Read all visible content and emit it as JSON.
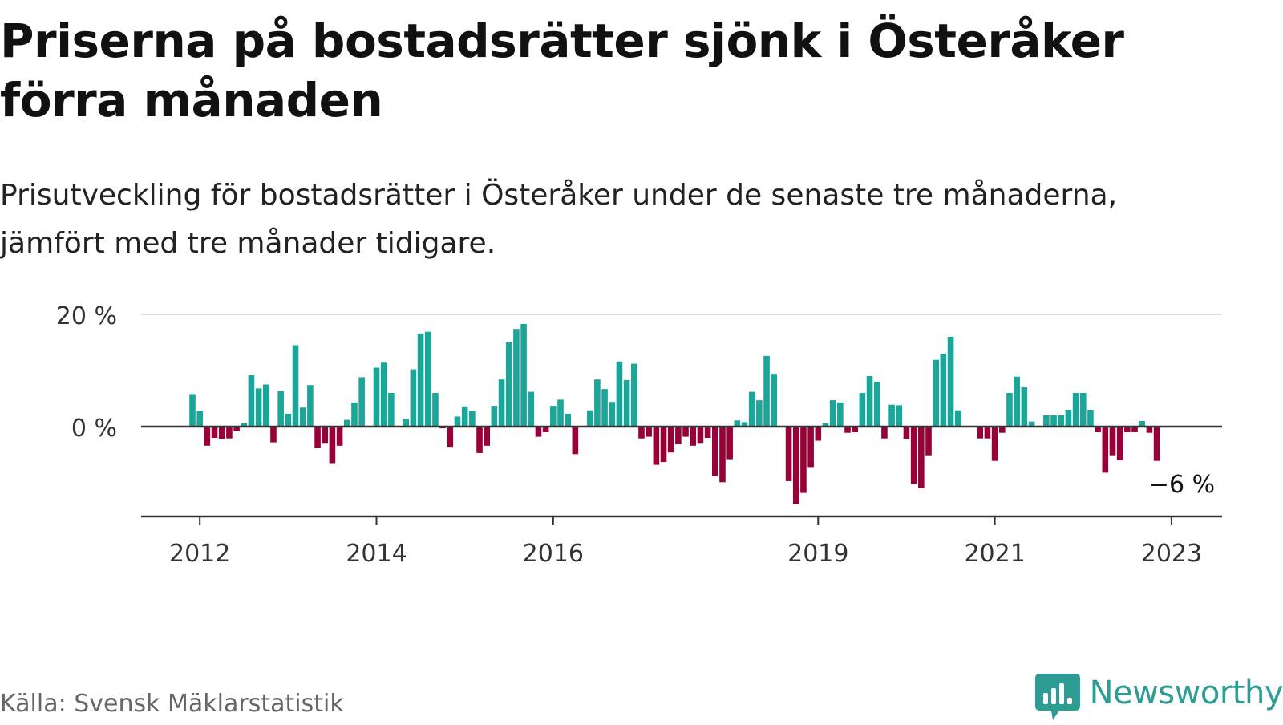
{
  "header": {
    "title": "Priserna på bostadsrätter sjönk i Österåker förra månaden",
    "subtitle": "Prisutveckling för bostadsrätter i Österåker under de senaste tre månaderna, jämfört med tre månader tidigare."
  },
  "footer": {
    "source": "Källa: Svensk Mäklarstatistik",
    "brand": "Newsworthy",
    "brand_icon": "bar-chart-speech-bubble-icon"
  },
  "colors": {
    "positive": "#1aa699",
    "negative": "#990038",
    "grid": "#dddddd",
    "axis": "#333333",
    "brand": "#2d9c93"
  },
  "chart_data": {
    "type": "bar",
    "title": "",
    "xlabel": "",
    "ylabel": "",
    "x_start": "2011-12",
    "x_end": "2023-03",
    "x_ticks": [
      "2012",
      "2014",
      "2016",
      "2019",
      "2021",
      "2023"
    ],
    "y_ticks": [
      {
        "value": 0,
        "label": "0 %"
      },
      {
        "value": 20,
        "label": "20 %"
      }
    ],
    "ylim": [
      -16,
      20
    ],
    "grid": true,
    "legend": "none",
    "annotation": {
      "label": "−6 %",
      "month": "2023-02",
      "value": -6
    },
    "series": [
      {
        "values": [
          {
            "month": "2011-12",
            "value": 5.8
          },
          {
            "month": "2012-01",
            "value": 2.8
          },
          {
            "month": "2012-02",
            "value": -3.4
          },
          {
            "month": "2012-03",
            "value": -2.0
          },
          {
            "month": "2012-04",
            "value": -2.2
          },
          {
            "month": "2012-05",
            "value": -2.1
          },
          {
            "month": "2012-06",
            "value": -0.8
          },
          {
            "month": "2012-07",
            "value": 0.6
          },
          {
            "month": "2012-08",
            "value": 9.2
          },
          {
            "month": "2012-09",
            "value": 6.8
          },
          {
            "month": "2012-10",
            "value": 7.5
          },
          {
            "month": "2012-11",
            "value": -2.8
          },
          {
            "month": "2012-12",
            "value": 6.3
          },
          {
            "month": "2013-01",
            "value": 2.3
          },
          {
            "month": "2013-02",
            "value": 14.5
          },
          {
            "month": "2013-03",
            "value": 3.4
          },
          {
            "month": "2013-04",
            "value": 7.4
          },
          {
            "month": "2013-05",
            "value": -3.8
          },
          {
            "month": "2013-06",
            "value": -2.9
          },
          {
            "month": "2013-07",
            "value": -6.5
          },
          {
            "month": "2013-08",
            "value": -3.4
          },
          {
            "month": "2013-09",
            "value": 1.2
          },
          {
            "month": "2013-10",
            "value": 4.3
          },
          {
            "month": "2013-11",
            "value": 8.8
          },
          {
            "month": "2014-01",
            "value": 10.5
          },
          {
            "month": "2014-02",
            "value": 11.4
          },
          {
            "month": "2014-03",
            "value": 6.0
          },
          {
            "month": "2014-05",
            "value": 1.4
          },
          {
            "month": "2014-06",
            "value": 10.2
          },
          {
            "month": "2014-07",
            "value": 16.6
          },
          {
            "month": "2014-08",
            "value": 16.9
          },
          {
            "month": "2014-09",
            "value": 6.0
          },
          {
            "month": "2014-10",
            "value": -0.3
          },
          {
            "month": "2014-11",
            "value": -3.6
          },
          {
            "month": "2014-12",
            "value": 1.8
          },
          {
            "month": "2015-01",
            "value": 3.6
          },
          {
            "month": "2015-02",
            "value": 2.8
          },
          {
            "month": "2015-03",
            "value": -4.7
          },
          {
            "month": "2015-04",
            "value": -3.4
          },
          {
            "month": "2015-05",
            "value": 3.7
          },
          {
            "month": "2015-06",
            "value": 8.4
          },
          {
            "month": "2015-07",
            "value": 15.0
          },
          {
            "month": "2015-08",
            "value": 17.4
          },
          {
            "month": "2015-09",
            "value": 18.3
          },
          {
            "month": "2015-10",
            "value": 6.2
          },
          {
            "month": "2015-11",
            "value": -1.8
          },
          {
            "month": "2015-12",
            "value": -1.0
          },
          {
            "month": "2016-01",
            "value": 3.7
          },
          {
            "month": "2016-02",
            "value": 4.8
          },
          {
            "month": "2016-03",
            "value": 2.3
          },
          {
            "month": "2016-04",
            "value": -4.9
          },
          {
            "month": "2016-06",
            "value": 2.9
          },
          {
            "month": "2016-07",
            "value": 8.4
          },
          {
            "month": "2016-08",
            "value": 6.7
          },
          {
            "month": "2016-09",
            "value": 4.4
          },
          {
            "month": "2016-10",
            "value": 11.6
          },
          {
            "month": "2016-11",
            "value": 8.3
          },
          {
            "month": "2016-12",
            "value": 11.2
          },
          {
            "month": "2017-01",
            "value": -2.1
          },
          {
            "month": "2017-02",
            "value": -1.8
          },
          {
            "month": "2017-03",
            "value": -6.8
          },
          {
            "month": "2017-04",
            "value": -6.3
          },
          {
            "month": "2017-05",
            "value": -4.6
          },
          {
            "month": "2017-06",
            "value": -3.1
          },
          {
            "month": "2017-07",
            "value": -1.8
          },
          {
            "month": "2017-08",
            "value": -3.4
          },
          {
            "month": "2017-09",
            "value": -2.9
          },
          {
            "month": "2017-10",
            "value": -2.0
          },
          {
            "month": "2017-11",
            "value": -8.8
          },
          {
            "month": "2017-12",
            "value": -9.9
          },
          {
            "month": "2018-01",
            "value": -5.8
          },
          {
            "month": "2018-02",
            "value": 1.1
          },
          {
            "month": "2018-03",
            "value": 0.8
          },
          {
            "month": "2018-04",
            "value": 6.2
          },
          {
            "month": "2018-05",
            "value": 4.7
          },
          {
            "month": "2018-06",
            "value": 12.6
          },
          {
            "month": "2018-07",
            "value": 9.4
          },
          {
            "month": "2018-09",
            "value": -9.7
          },
          {
            "month": "2018-10",
            "value": -13.8
          },
          {
            "month": "2018-11",
            "value": -11.8
          },
          {
            "month": "2018-12",
            "value": -7.2
          },
          {
            "month": "2019-01",
            "value": -2.5
          },
          {
            "month": "2019-02",
            "value": 0.6
          },
          {
            "month": "2019-03",
            "value": 4.7
          },
          {
            "month": "2019-04",
            "value": 4.3
          },
          {
            "month": "2019-05",
            "value": -1.1
          },
          {
            "month": "2019-06",
            "value": -1.0
          },
          {
            "month": "2019-07",
            "value": 6.0
          },
          {
            "month": "2019-08",
            "value": 9.0
          },
          {
            "month": "2019-09",
            "value": 8.0
          },
          {
            "month": "2019-10",
            "value": -2.1
          },
          {
            "month": "2019-11",
            "value": 3.9
          },
          {
            "month": "2019-12",
            "value": 3.8
          },
          {
            "month": "2020-01",
            "value": -2.2
          },
          {
            "month": "2020-02",
            "value": -10.2
          },
          {
            "month": "2020-03",
            "value": -11.0
          },
          {
            "month": "2020-04",
            "value": -5.1
          },
          {
            "month": "2020-05",
            "value": 11.9
          },
          {
            "month": "2020-06",
            "value": 13.0
          },
          {
            "month": "2020-07",
            "value": 16.0
          },
          {
            "month": "2020-08",
            "value": 2.9
          },
          {
            "month": "2020-11",
            "value": -2.1
          },
          {
            "month": "2020-12",
            "value": -2.1
          },
          {
            "month": "2021-01",
            "value": -6.1
          },
          {
            "month": "2021-02",
            "value": -1.1
          },
          {
            "month": "2021-03",
            "value": 6.0
          },
          {
            "month": "2021-04",
            "value": 8.9
          },
          {
            "month": "2021-05",
            "value": 7.0
          },
          {
            "month": "2021-06",
            "value": 0.9
          },
          {
            "month": "2021-08",
            "value": 2.0
          },
          {
            "month": "2021-09",
            "value": 2.0
          },
          {
            "month": "2021-10",
            "value": 2.0
          },
          {
            "month": "2021-11",
            "value": 3.0
          },
          {
            "month": "2021-12",
            "value": 6.0
          },
          {
            "month": "2022-01",
            "value": 6.0
          },
          {
            "month": "2022-02",
            "value": 3.0
          },
          {
            "month": "2022-03",
            "value": -1.0
          },
          {
            "month": "2022-04",
            "value": -8.2
          },
          {
            "month": "2022-05",
            "value": -5.1
          },
          {
            "month": "2022-06",
            "value": -6.0
          },
          {
            "month": "2022-07",
            "value": -1.0
          },
          {
            "month": "2022-08",
            "value": -1.0
          },
          {
            "month": "2022-09",
            "value": 1.0
          },
          {
            "month": "2022-10",
            "value": -1.1
          },
          {
            "month": "2022-11",
            "value": -6.1
          }
        ]
      }
    ]
  }
}
